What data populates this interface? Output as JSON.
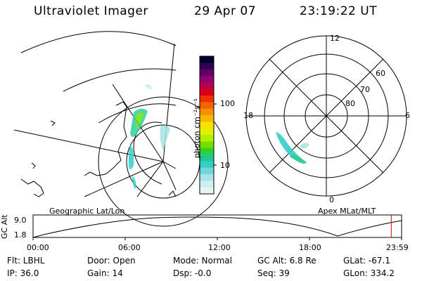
{
  "header": {
    "instrument": "Ultraviolet Imager",
    "date": "29 Apr 07",
    "time": "23:19:22 UT"
  },
  "geo_map": {
    "label": "Geographic Lat/Lon"
  },
  "polar_plot": {
    "label": "Apex MLat/MLT",
    "mlt_labels": [
      "12",
      "18",
      "6",
      "0"
    ],
    "mlat_labels": [
      "60",
      "70",
      "80"
    ]
  },
  "colorbar": {
    "unit_label": "photon cm⁻²s⁻¹",
    "tick_labels": [
      "100",
      "10"
    ],
    "colors": [
      "#000030",
      "#300050",
      "#60006a",
      "#900078",
      "#b8004e",
      "#d80018",
      "#f03000",
      "#f86000",
      "#f89000",
      "#f8b800",
      "#f8e000",
      "#e0f000",
      "#b0f000",
      "#70e000",
      "#30d030",
      "#20c890",
      "#30d0c8",
      "#70d8d8",
      "#a8e4e4",
      "#d0eeee",
      "#e8f4f4"
    ]
  },
  "timeline": {
    "ylabel": "GC Alt",
    "yticks": [
      "9.0",
      "1.8"
    ],
    "xticks": [
      "00:00",
      "06:00",
      "12:00",
      "18:00",
      "23:59"
    ],
    "current_time_fraction": 0.972
  },
  "info": {
    "flt": "Flt: LBHL",
    "ip": "IP: 36.0",
    "door": "Door: Open",
    "gain": "Gain: 14",
    "mode": "Mode: Normal",
    "dsp": "Dsp:   -0.0",
    "gcalt": "GC Alt: 6.8 Re",
    "seq": "Seq: 39",
    "glat": "GLat: -67.1",
    "glon": "GLon: 334.2"
  }
}
